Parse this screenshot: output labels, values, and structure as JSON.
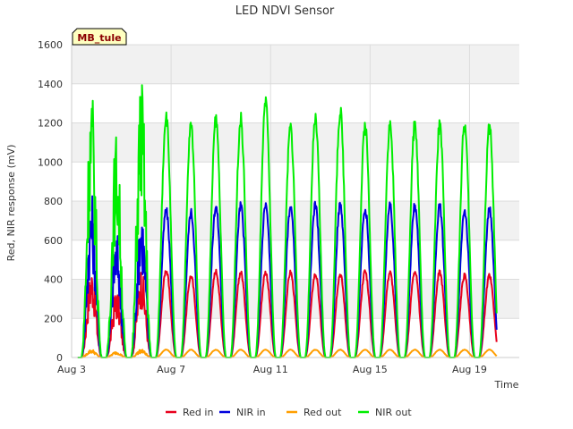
{
  "chart_data": {
    "type": "line",
    "title": "LED NDVI Sensor",
    "xlabel": "Time",
    "ylabel": "Red, NIR response (mV)",
    "site_label": "MB_tule",
    "x_tick_labels": [
      "Aug 3",
      "Aug 7",
      "Aug 11",
      "Aug 15",
      "Aug 19"
    ],
    "x_tick_days": [
      3,
      7,
      11,
      15,
      19
    ],
    "xlim": [
      3,
      21
    ],
    "y_ticks": [
      0,
      200,
      400,
      600,
      800,
      1000,
      1200,
      1400,
      1600
    ],
    "ylim": [
      0,
      1600
    ],
    "grid": true,
    "legend_position": "bottom",
    "day_centers": [
      3.8,
      4.8,
      5.8,
      6.8,
      7.8,
      8.8,
      9.8,
      10.8,
      11.8,
      12.8,
      13.8,
      14.8,
      15.8,
      16.8,
      17.8,
      18.8,
      19.8
    ],
    "series": [
      {
        "name": "Red in",
        "color": "#e8001c",
        "daily_peaks": [
          450,
          340,
          450,
          450,
          420,
          445,
          440,
          440,
          440,
          430,
          430,
          445,
          440,
          445,
          440,
          425,
          420
        ]
      },
      {
        "name": "NIR in",
        "color": "#0000dd",
        "daily_peaks": [
          810,
          630,
          770,
          760,
          750,
          780,
          785,
          790,
          780,
          785,
          790,
          770,
          780,
          785,
          780,
          760,
          765
        ]
      },
      {
        "name": "Red out",
        "color": "#ff9e00",
        "daily_peaks": [
          40,
          30,
          40,
          40,
          40,
          40,
          40,
          40,
          40,
          40,
          40,
          40,
          40,
          40,
          40,
          40,
          40
        ]
      },
      {
        "name": "NIR out",
        "color": "#00ee00",
        "daily_peaks": [
          1340,
          1120,
          1400,
          1250,
          1200,
          1230,
          1230,
          1310,
          1190,
          1230,
          1270,
          1200,
          1200,
          1200,
          1200,
          1200,
          1190
        ]
      }
    ]
  }
}
